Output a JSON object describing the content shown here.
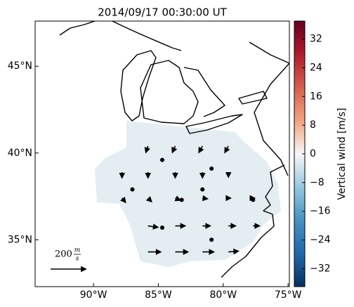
{
  "chart_data": {
    "type": "quiver",
    "title": "2014/09/17 00:30:00 UT",
    "xlim": [
      -94.5,
      -74.9
    ],
    "ylim": [
      32.3,
      47.6
    ],
    "xticks": [
      {
        "value": -90,
        "label": "90°W"
      },
      {
        "value": -85,
        "label": "85°W"
      },
      {
        "value": -80,
        "label": "80°W"
      },
      {
        "value": -75,
        "label": "75°W"
      }
    ],
    "yticks": [
      {
        "value": 35,
        "label": "35°N"
      },
      {
        "value": 40,
        "label": "40°N"
      },
      {
        "value": 45,
        "label": "45°N"
      }
    ],
    "arrows": [
      {
        "lon": -85.8,
        "lat": 40.4,
        "u": -12,
        "v": -36
      },
      {
        "lon": -83.7,
        "lat": 40.4,
        "u": -16,
        "v": -36
      },
      {
        "lon": -81.6,
        "lat": 40.4,
        "u": -20,
        "v": -36
      },
      {
        "lon": -79.6,
        "lat": 40.4,
        "u": -20,
        "v": -36
      },
      {
        "lon": -87.8,
        "lat": 38.9,
        "u": 0,
        "v": -32
      },
      {
        "lon": -85.8,
        "lat": 38.9,
        "u": 0,
        "v": -32
      },
      {
        "lon": -83.7,
        "lat": 38.9,
        "u": 0,
        "v": -32
      },
      {
        "lon": -81.6,
        "lat": 38.9,
        "u": 0,
        "v": -32
      },
      {
        "lon": -79.6,
        "lat": 38.9,
        "u": 0,
        "v": -28
      },
      {
        "lon": -87.8,
        "lat": 37.4,
        "u": 20,
        "v": -24
      },
      {
        "lon": -85.8,
        "lat": 37.4,
        "u": 20,
        "v": -20
      },
      {
        "lon": -83.7,
        "lat": 37.4,
        "u": 28,
        "v": -12
      },
      {
        "lon": -81.6,
        "lat": 37.4,
        "u": 28,
        "v": -4
      },
      {
        "lon": -79.6,
        "lat": 37.4,
        "u": 12,
        "v": 0
      },
      {
        "lon": -77.7,
        "lat": 37.4,
        "u": 8,
        "v": 0
      },
      {
        "lon": -85.8,
        "lat": 35.8,
        "u": 56,
        "v": -8
      },
      {
        "lon": -83.7,
        "lat": 35.8,
        "u": 56,
        "v": 0
      },
      {
        "lon": -81.6,
        "lat": 35.8,
        "u": 44,
        "v": 0
      },
      {
        "lon": -79.6,
        "lat": 35.8,
        "u": 40,
        "v": 0
      },
      {
        "lon": -77.7,
        "lat": 35.8,
        "u": 36,
        "v": 0
      },
      {
        "lon": -85.8,
        "lat": 34.3,
        "u": 72,
        "v": 0
      },
      {
        "lon": -83.7,
        "lat": 34.3,
        "u": 72,
        "v": 0
      },
      {
        "lon": -81.6,
        "lat": 34.3,
        "u": 64,
        "v": 0
      },
      {
        "lon": -79.6,
        "lat": 34.3,
        "u": 56,
        "v": 4
      }
    ],
    "stations": [
      {
        "lon": -84.7,
        "lat": 39.6
      },
      {
        "lon": -80.9,
        "lat": 39.1
      },
      {
        "lon": -87.0,
        "lat": 37.9
      },
      {
        "lon": -81.6,
        "lat": 37.9
      },
      {
        "lon": -83.2,
        "lat": 37.3
      },
      {
        "lon": -77.7,
        "lat": 37.3
      },
      {
        "lon": -84.7,
        "lat": 35.7
      },
      {
        "lon": -80.9,
        "lat": 35.0
      }
    ],
    "key": {
      "value": 200,
      "unit_num": "m",
      "unit_den": "s"
    },
    "colorbar": {
      "label": "Vertical wind [m/s]",
      "lim": [
        -37,
        37
      ],
      "ticks": [
        {
          "value": -32,
          "label": "−32"
        },
        {
          "value": -24,
          "label": "−24"
        },
        {
          "value": -16,
          "label": "−16"
        },
        {
          "value": -8,
          "label": "−8"
        },
        0,
        8,
        16,
        24,
        32
      ]
    }
  }
}
